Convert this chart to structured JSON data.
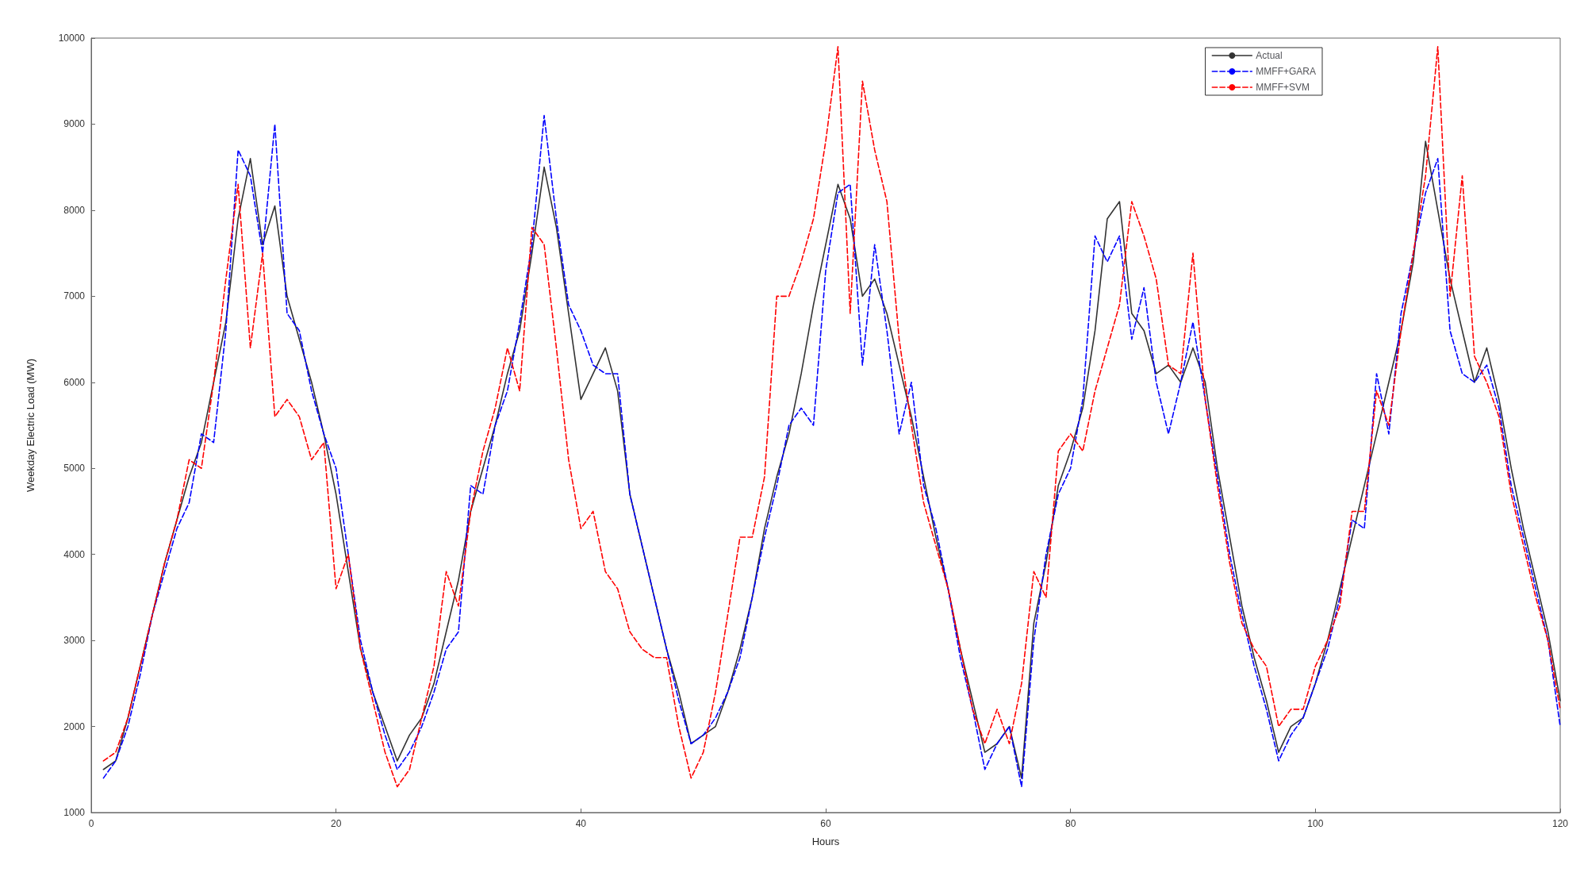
{
  "chart_data": {
    "type": "line",
    "xlabel": "Hours",
    "ylabel": "Weekday Electric Load (MW)",
    "xlim": [
      0,
      120
    ],
    "xticks": [
      0,
      20,
      40,
      60,
      80,
      100,
      120
    ],
    "ylim": [
      1000,
      10000
    ],
    "yticks": [
      1000,
      2000,
      3000,
      4000,
      5000,
      6000,
      7000,
      8000,
      9000,
      10000
    ],
    "grid": false,
    "legend": "top right",
    "marker": "none",
    "x": [
      1,
      2,
      3,
      4,
      5,
      6,
      7,
      8,
      9,
      10,
      11,
      12,
      13,
      14,
      15,
      16,
      17,
      18,
      19,
      20,
      21,
      22,
      23,
      24,
      25,
      26,
      27,
      28,
      29,
      30,
      31,
      32,
      33,
      34,
      35,
      36,
      37,
      38,
      39,
      40,
      41,
      42,
      43,
      44,
      45,
      46,
      47,
      48,
      49,
      50,
      51,
      52,
      53,
      54,
      55,
      56,
      57,
      58,
      59,
      60,
      61,
      62,
      63,
      64,
      65,
      66,
      67,
      68,
      69,
      70,
      71,
      72,
      73,
      74,
      75,
      76,
      77,
      78,
      79,
      80,
      81,
      82,
      83,
      84,
      85,
      86,
      87,
      88,
      89,
      90,
      91,
      92,
      93,
      94,
      95,
      96,
      97,
      98,
      99,
      100,
      101,
      102,
      103,
      104,
      105,
      106,
      107,
      108,
      109,
      110,
      111,
      112,
      113,
      114,
      115,
      116,
      117,
      118,
      119,
      120
    ],
    "series": [
      {
        "name": "Actual",
        "color": "#333333",
        "line_style": "solid",
        "values": [
          1500,
          1600,
          2100,
          2700,
          3300,
          3900,
          4400,
          4900,
          5300,
          6000,
          6700,
          7900,
          8600,
          7600,
          8050,
          7000,
          6500,
          6000,
          5400,
          4700,
          3800,
          2900,
          2400,
          2000,
          1600,
          1900,
          2100,
          2500,
          3100,
          3700,
          4500,
          5000,
          5500,
          6100,
          6600,
          7500,
          8500,
          7800,
          6800,
          5800,
          6100,
          6400,
          5900,
          4700,
          4100,
          3500,
          2900,
          2400,
          1800,
          1900,
          2000,
          2400,
          2900,
          3500,
          4300,
          4900,
          5400,
          6100,
          6900,
          7600,
          8300,
          7900,
          7000,
          7200,
          6800,
          6200,
          5600,
          4900,
          4200,
          3600,
          2900,
          2300,
          1700,
          1800,
          2000,
          1400,
          3200,
          3900,
          4800,
          5200,
          5700,
          6600,
          7900,
          8100,
          6800,
          6600,
          6100,
          6200,
          6000,
          6400,
          6000,
          5000,
          4200,
          3400,
          2800,
          2300,
          1700,
          2000,
          2100,
          2500,
          3000,
          3600,
          4200,
          4800,
          5400,
          6000,
          6600,
          7400,
          8800,
          8000,
          7200,
          6600,
          6000,
          6400,
          5800,
          5000,
          4300,
          3700,
          3100,
          2300
        ]
      },
      {
        "name": "MMFF+GARA",
        "color": "#0000ff",
        "line_style": "dashed",
        "values": [
          1400,
          1600,
          2000,
          2600,
          3300,
          3800,
          4300,
          4600,
          5400,
          5300,
          6600,
          8700,
          8400,
          7500,
          9000,
          6800,
          6600,
          5900,
          5400,
          5000,
          4000,
          3000,
          2400,
          1900,
          1500,
          1700,
          2000,
          2400,
          2900,
          3100,
          4800,
          4700,
          5500,
          5900,
          6700,
          7600,
          9100,
          7900,
          6900,
          6600,
          6200,
          6100,
          6100,
          4700,
          4100,
          3500,
          2900,
          2300,
          1800,
          1900,
          2100,
          2400,
          2800,
          3500,
          4200,
          4800,
          5500,
          5700,
          5500,
          7300,
          8200,
          8300,
          6200,
          7600,
          6600,
          5400,
          6000,
          4800,
          4300,
          3600,
          2800,
          2200,
          1500,
          1800,
          2000,
          1300,
          3000,
          4000,
          4700,
          5000,
          5800,
          7700,
          7400,
          7700,
          6500,
          7100,
          6000,
          5400,
          6000,
          6700,
          5800,
          4900,
          4000,
          3300,
          2700,
          2200,
          1600,
          1900,
          2100,
          2500,
          2900,
          3500,
          4400,
          4300,
          6100,
          5400,
          6800,
          7500,
          8200,
          8600,
          6600,
          6100,
          6000,
          6200,
          5700,
          4800,
          4200,
          3600,
          3000,
          2000
        ]
      },
      {
        "name": "MMFF+SVM",
        "color": "#ff0000",
        "line_style": "dashed",
        "values": [
          1600,
          1700,
          2100,
          2700,
          3300,
          3900,
          4400,
          5100,
          5000,
          6000,
          7200,
          8300,
          6400,
          7500,
          5600,
          5800,
          5600,
          5100,
          5300,
          3600,
          4000,
          2900,
          2300,
          1700,
          1300,
          1500,
          2100,
          2700,
          3800,
          3400,
          4500,
          5200,
          5700,
          6400,
          5900,
          7800,
          7600,
          6400,
          5100,
          4300,
          4500,
          3800,
          3600,
          3100,
          2900,
          2800,
          2800,
          2000,
          1400,
          1700,
          2400,
          3300,
          4200,
          4200,
          4900,
          7000,
          7000,
          7400,
          7900,
          8800,
          9900,
          6800,
          9500,
          8700,
          8100,
          6500,
          5500,
          4600,
          4100,
          3600,
          2900,
          2200,
          1800,
          2200,
          1800,
          2500,
          3800,
          3500,
          5200,
          5400,
          5200,
          5900,
          6400,
          6900,
          8100,
          7700,
          7200,
          6200,
          6100,
          7500,
          5800,
          4800,
          3900,
          3200,
          2900,
          2700,
          2000,
          2200,
          2200,
          2700,
          3000,
          3400,
          4500,
          4500,
          5900,
          5500,
          6600,
          7500,
          8400,
          9900,
          7000,
          8400,
          6300,
          6000,
          5600,
          4700,
          4100,
          3500,
          3000,
          2200
        ]
      }
    ]
  }
}
